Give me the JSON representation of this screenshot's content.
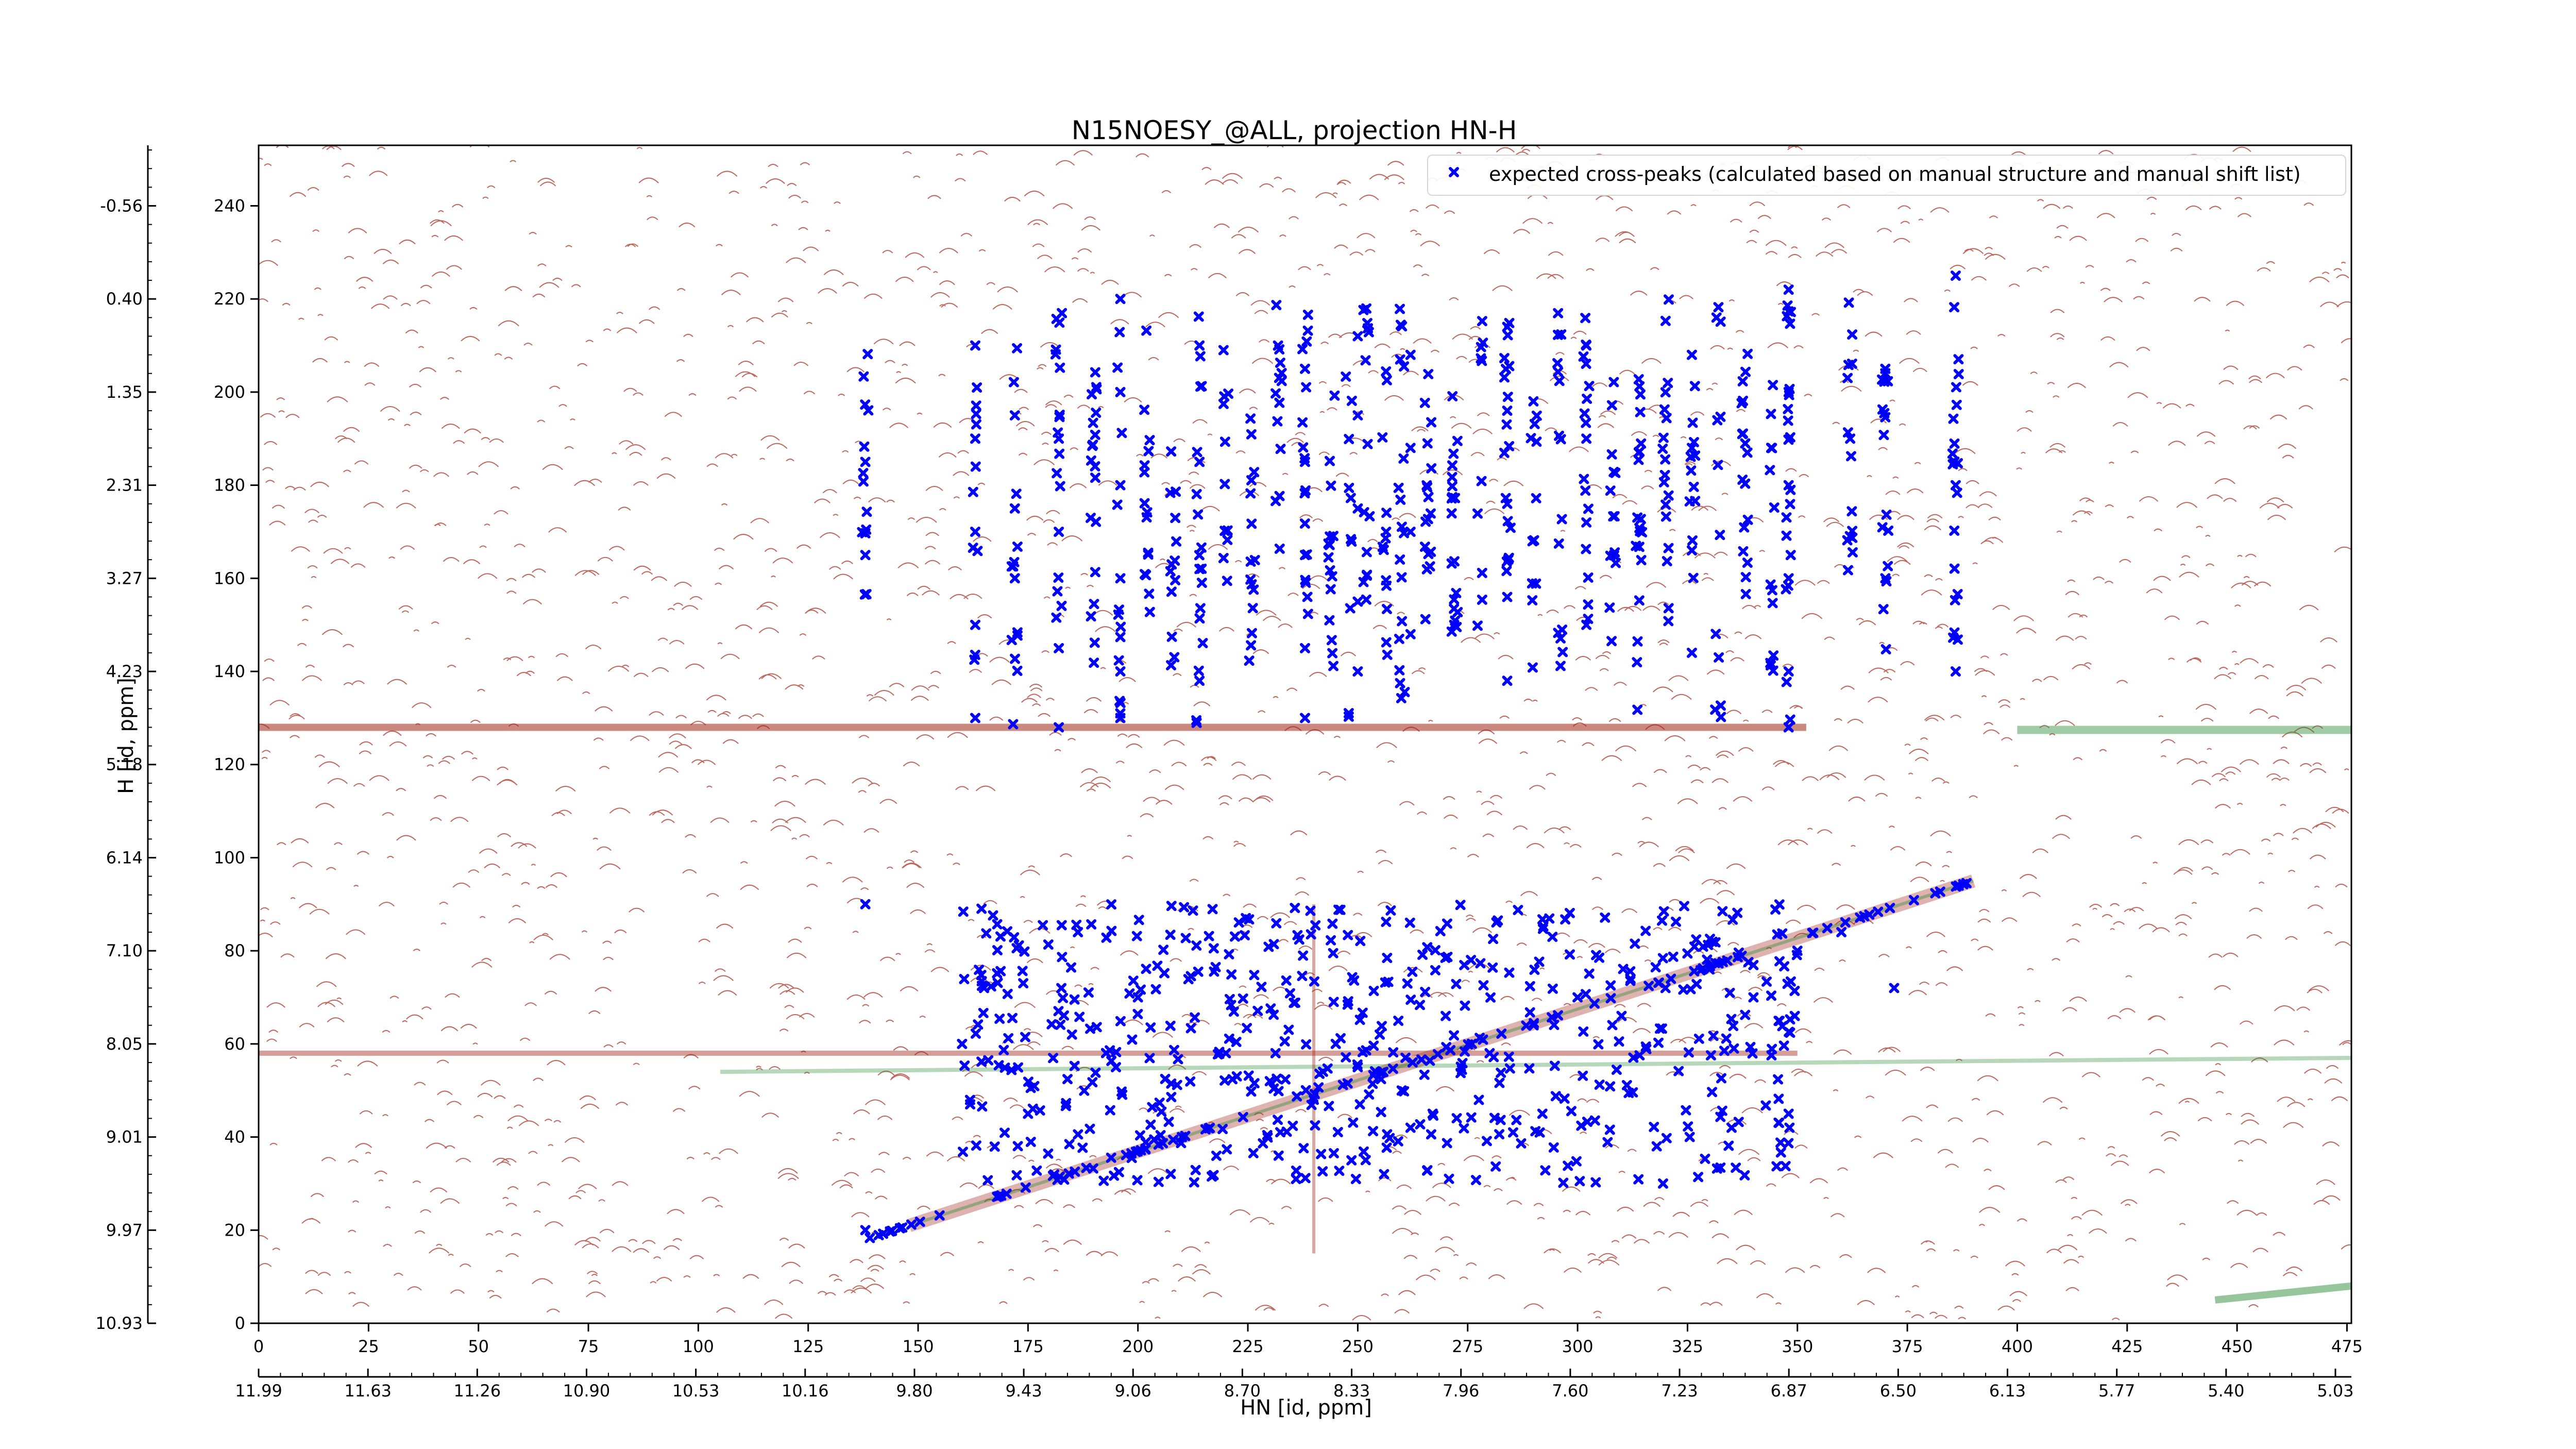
{
  "chart_data": {
    "type": "scatter",
    "title": "N15NOESY_@ALL, projection HN-H",
    "xlabel": "HN [id, ppm]",
    "ylabel": "H [id, ppm]",
    "xlim": [
      0,
      476
    ],
    "ylim": [
      0,
      253
    ],
    "x_index_ticks": [
      "0",
      "25",
      "50",
      "75",
      "100",
      "125",
      "150",
      "175",
      "200",
      "225",
      "250",
      "275",
      "300",
      "325",
      "350",
      "375",
      "400",
      "425",
      "450",
      "475"
    ],
    "x_ppm_ticks": [
      "11.99",
      "11.63",
      "11.26",
      "10.90",
      "10.53",
      "10.16",
      "9.80",
      "9.43",
      "9.06",
      "8.70",
      "8.33",
      "7.96",
      "7.60",
      "7.23",
      "6.87",
      "6.50",
      "6.13",
      "5.77",
      "5.40",
      "5.03"
    ],
    "y_index_ticks": [
      "0",
      "20",
      "40",
      "60",
      "80",
      "100",
      "120",
      "140",
      "160",
      "180",
      "200",
      "220",
      "240"
    ],
    "y_ppm_ticks": [
      "10.93",
      "9.97",
      "9.01",
      "8.05",
      "7.10",
      "6.14",
      "5.18",
      "4.23",
      "3.27",
      "2.31",
      "1.35",
      "0.40",
      "-0.56"
    ],
    "grid": false,
    "legend": {
      "position": "top-right",
      "entries": [
        "expected cross-peaks (calculated based on manual structure and manual shift list)"
      ]
    },
    "colors": {
      "marker": "#0000ff",
      "contour_positive": "#a0261a",
      "contour_negative": "#2e8b3a",
      "axis": "#000000"
    },
    "series": [
      {
        "name": "expected cross-peaks (calculated based on manual structure and manual shift list)",
        "marker": "x",
        "stripe_x": [
          138,
          163,
          172,
          182,
          190,
          196,
          202,
          208,
          214,
          220,
          226,
          232,
          238,
          244,
          248,
          252,
          256,
          260,
          266,
          272,
          278,
          284,
          290,
          296,
          302,
          308,
          314,
          320,
          326,
          332,
          338,
          344,
          348,
          362,
          370,
          386
        ],
        "stripe_y_ranges": [
          [
            150,
            220
          ],
          [
            140,
            205
          ],
          [
            128,
            220
          ]
        ],
        "lower_cluster_x": [
          160,
          350
        ],
        "lower_cluster_y": [
          30,
          90
        ],
        "diagonal": {
          "x": [
            138,
            390
          ],
          "y": [
            18,
            95
          ]
        },
        "points": [
          [
            138,
            165
          ],
          [
            138,
            185
          ],
          [
            138,
            90
          ],
          [
            138,
            20
          ],
          [
            163,
            210
          ],
          [
            163,
            190
          ],
          [
            163,
            170
          ],
          [
            163,
            150
          ],
          [
            163,
            130
          ],
          [
            172,
            195
          ],
          [
            172,
            175
          ],
          [
            172,
            160
          ],
          [
            182,
            190
          ],
          [
            182,
            170
          ],
          [
            182,
            145
          ],
          [
            182,
            128
          ],
          [
            196,
            220
          ],
          [
            196,
            200
          ],
          [
            196,
            180
          ],
          [
            196,
            160
          ],
          [
            196,
            140
          ],
          [
            196,
            130
          ],
          [
            214,
            210
          ],
          [
            214,
            185
          ],
          [
            214,
            162
          ],
          [
            214,
            138
          ],
          [
            238,
            205
          ],
          [
            238,
            185
          ],
          [
            238,
            165
          ],
          [
            238,
            145
          ],
          [
            238,
            130
          ],
          [
            250,
            212
          ],
          [
            250,
            195
          ],
          [
            250,
            175
          ],
          [
            250,
            155
          ],
          [
            250,
            140
          ],
          [
            262,
            208
          ],
          [
            262,
            188
          ],
          [
            262,
            170
          ],
          [
            262,
            148
          ],
          [
            284,
            214
          ],
          [
            284,
            196
          ],
          [
            284,
            176
          ],
          [
            284,
            156
          ],
          [
            284,
            138
          ],
          [
            302,
            210
          ],
          [
            302,
            190
          ],
          [
            302,
            172
          ],
          [
            302,
            150
          ],
          [
            326,
            208
          ],
          [
            326,
            188
          ],
          [
            326,
            166
          ],
          [
            326,
            144
          ],
          [
            348,
            222
          ],
          [
            348,
            200
          ],
          [
            348,
            180
          ],
          [
            348,
            160
          ],
          [
            348,
            140
          ],
          [
            348,
            128
          ],
          [
            362,
            190
          ],
          [
            370,
            205
          ],
          [
            370,
            160
          ],
          [
            386,
            225
          ],
          [
            386,
            180
          ],
          [
            386,
            140
          ],
          [
            160,
            60
          ],
          [
            165,
            72
          ],
          [
            175,
            45
          ],
          [
            185,
            62
          ],
          [
            195,
            55
          ],
          [
            200,
            70
          ],
          [
            210,
            40
          ],
          [
            220,
            58
          ],
          [
            230,
            52
          ],
          [
            240,
            48
          ],
          [
            245,
            60
          ],
          [
            250,
            55
          ],
          [
            255,
            62
          ],
          [
            260,
            50
          ],
          [
            270,
            66
          ],
          [
            280,
            58
          ],
          [
            290,
            64
          ],
          [
            300,
            70
          ],
          [
            310,
            66
          ],
          [
            320,
            72
          ],
          [
            330,
            76
          ],
          [
            340,
            70
          ],
          [
            350,
            80
          ],
          [
            360,
            84
          ],
          [
            232,
            36
          ],
          [
            262,
            42
          ],
          [
            292,
            45
          ],
          [
            318,
            38
          ],
          [
            348,
            45
          ],
          [
            372,
            72
          ]
        ]
      }
    ]
  }
}
